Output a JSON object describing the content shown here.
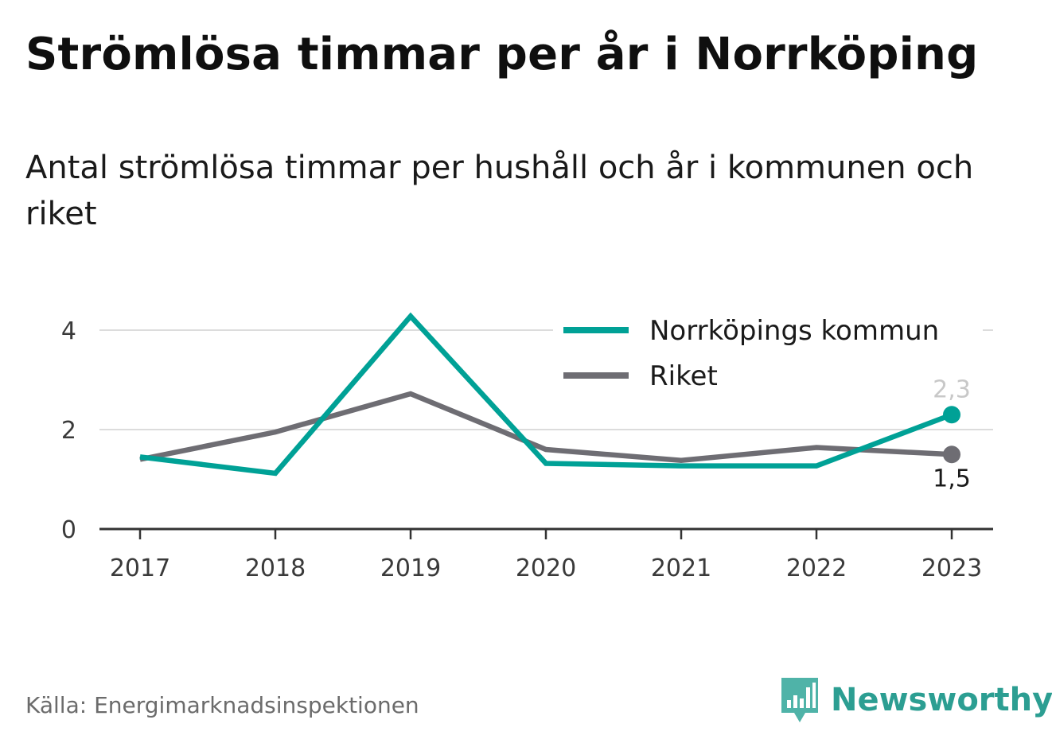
{
  "title": "Strömlösa timmar per år i Norrköping",
  "subtitle": "Antal strömlösa timmar per hushåll och år i kommunen och riket",
  "source": "Källa: Energimarknadsinspektionen",
  "brand": {
    "name": "Newsworthy",
    "icon": "bar-chart-speech-bubble-icon",
    "color": "#2c9e92"
  },
  "chart_data": {
    "type": "line",
    "x": [
      "2017",
      "2018",
      "2019",
      "2020",
      "2021",
      "2022",
      "2023"
    ],
    "ylim": [
      0,
      4.3
    ],
    "yticks": [
      "0",
      "2",
      "4"
    ],
    "ytick_values": [
      0,
      2,
      4
    ],
    "grid": true,
    "legend_position": "top-right",
    "series": [
      {
        "name": "Norrköpings kommun",
        "color": "#00a196",
        "values": [
          1.45,
          1.12,
          4.28,
          1.32,
          1.27,
          1.27,
          2.3
        ],
        "end_label": "2,3",
        "end_label_color": "#c8c8c8"
      },
      {
        "name": "Riket",
        "color": "#6e6d73",
        "values": [
          1.4,
          1.95,
          2.72,
          1.6,
          1.38,
          1.64,
          1.5
        ],
        "end_label": "1,5",
        "end_label_color": "#1a1a1a"
      }
    ]
  }
}
